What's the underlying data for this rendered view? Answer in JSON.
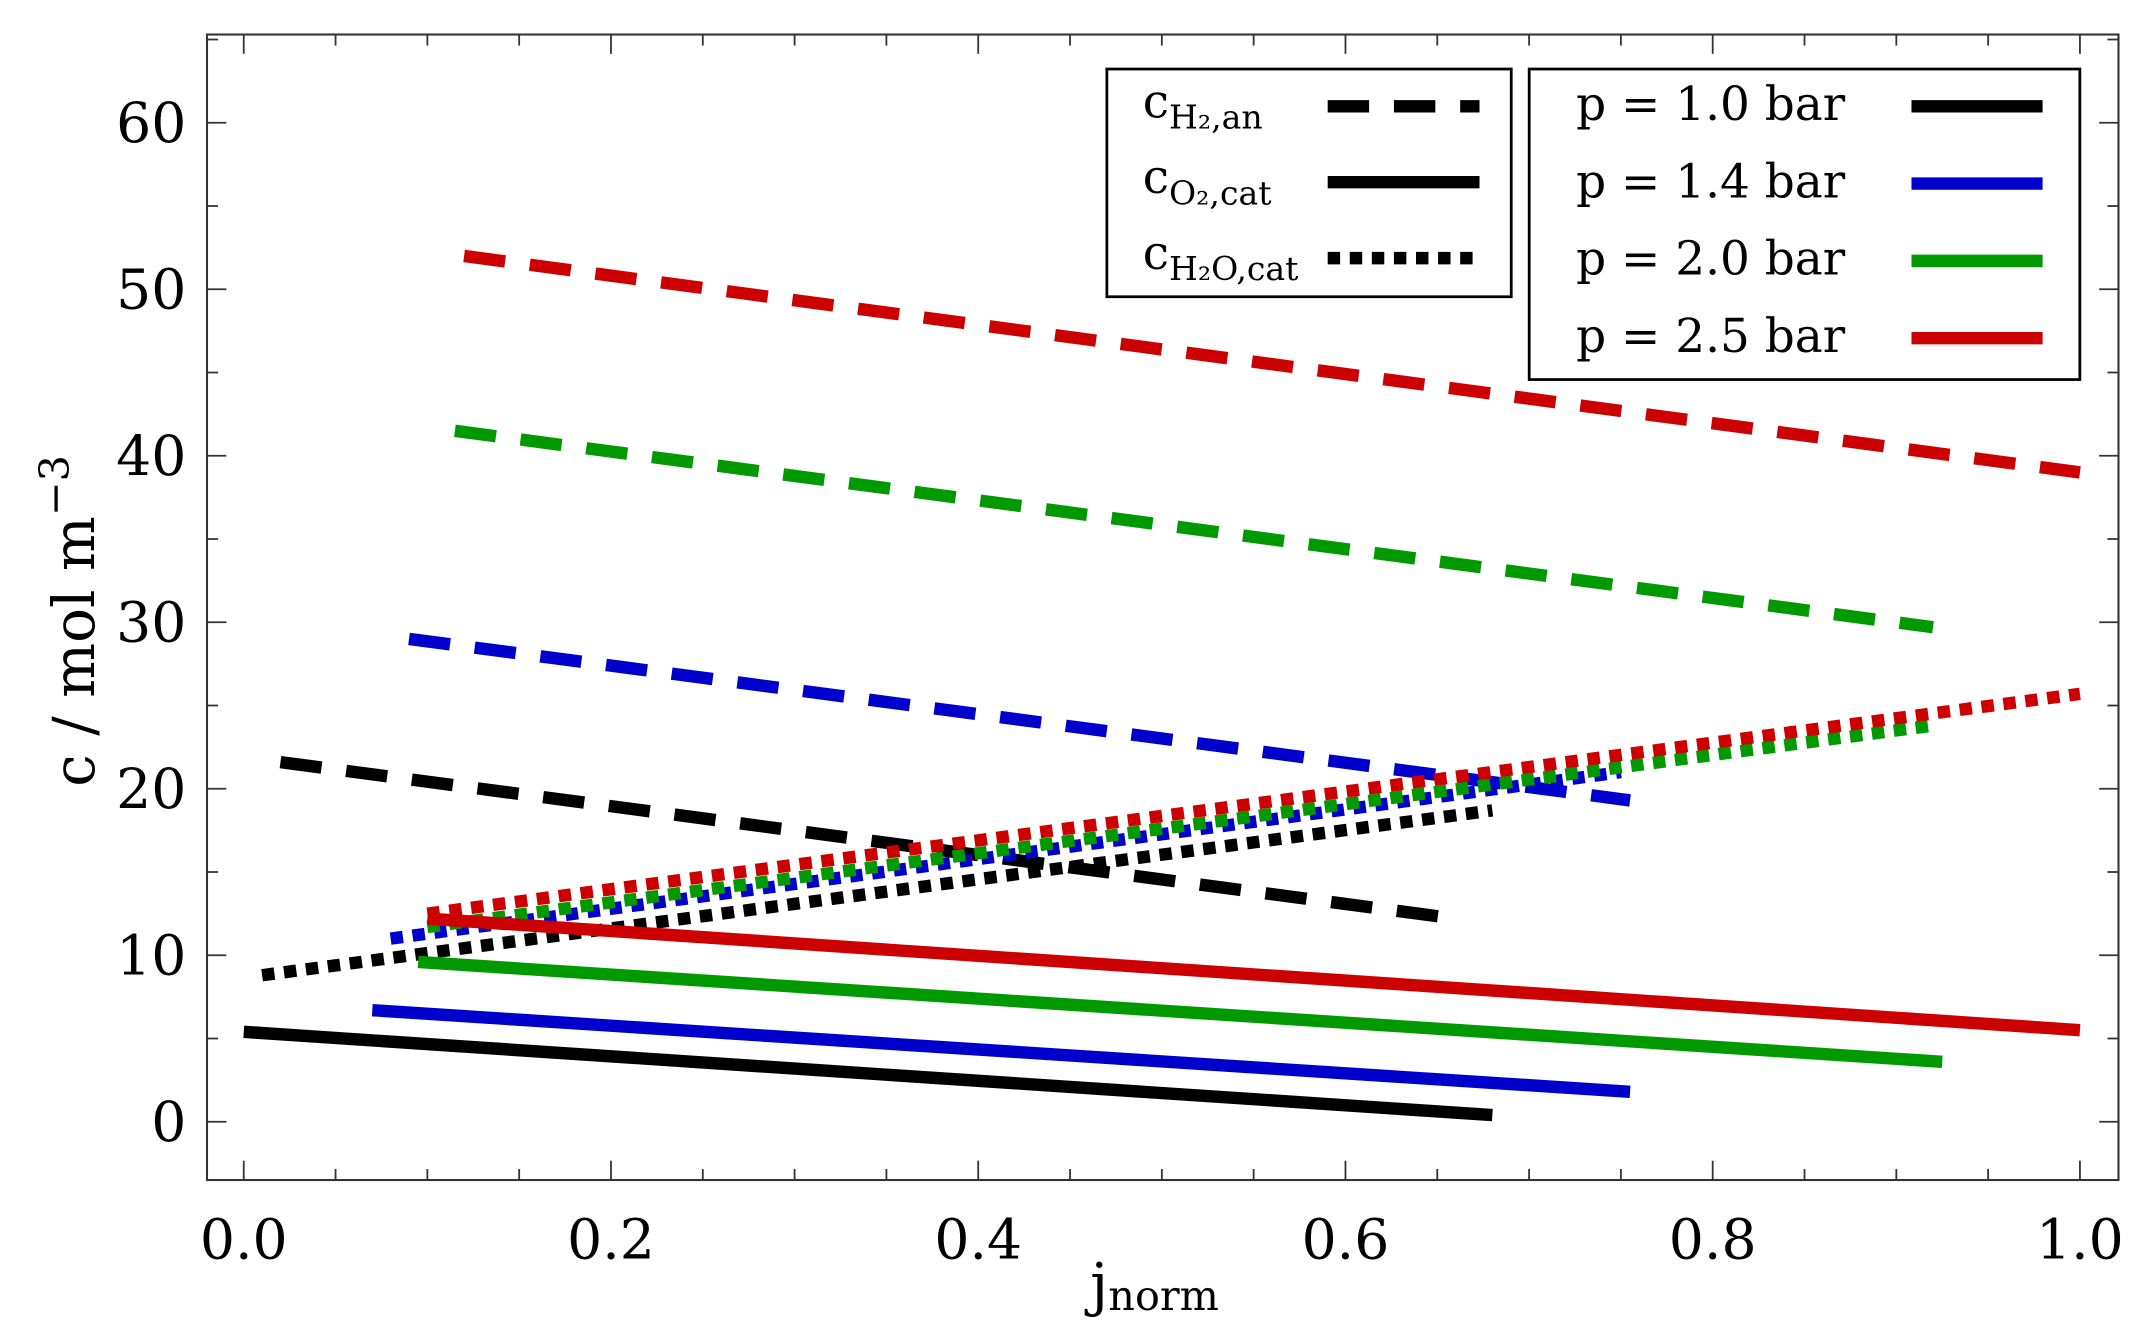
{
  "chart_data": {
    "type": "line",
    "title": "",
    "xlabel": "j",
    "xlabel_subscript": "norm",
    "ylabel": "c / mol m",
    "ylabel_superscript": "−3",
    "xlim": [
      -0.02,
      1.021
    ],
    "ylim": [
      -3.5,
      65.3
    ],
    "xticks": [
      0.0,
      0.2,
      0.4,
      0.6,
      0.8,
      1.0
    ],
    "xtick_labels": [
      "0.0",
      "0.2",
      "0.4",
      "0.6",
      "0.8",
      "1.0"
    ],
    "yticks": [
      0,
      10,
      20,
      30,
      40,
      50,
      60
    ],
    "ytick_labels": [
      "0",
      "10",
      "20",
      "30",
      "40",
      "50",
      "60"
    ],
    "grid": false,
    "line_styles_legend": {
      "placement": "top-center-right",
      "entries": [
        {
          "symbol": "c",
          "subscript": "H₂,an",
          "style": "dashed"
        },
        {
          "symbol": "c",
          "subscript": "O₂,cat",
          "style": "solid"
        },
        {
          "symbol": "c",
          "subscript": "H₂O,cat",
          "style": "dotted"
        }
      ]
    },
    "color_legend": {
      "placement": "top-right",
      "entries": [
        {
          "label": "p = 1.0  bar",
          "color": "#000000"
        },
        {
          "label": "p = 1.4  bar",
          "color": "#0000cc"
        },
        {
          "label": "p = 2.0  bar",
          "color": "#009900"
        },
        {
          "label": "p = 2.5  bar",
          "color": "#cc0000"
        }
      ]
    },
    "series": [
      {
        "pressure": "1.0 bar",
        "quantity": "H2,an",
        "style": "dashed",
        "color": "#000000",
        "x": [
          0.02,
          0.66
        ],
        "y": [
          21.6,
          12.2
        ]
      },
      {
        "pressure": "1.0 bar",
        "quantity": "O2,cat",
        "style": "solid",
        "color": "#000000",
        "x": [
          0.0,
          0.68
        ],
        "y": [
          5.4,
          0.4
        ]
      },
      {
        "pressure": "1.0 bar",
        "quantity": "H2O,cat",
        "style": "dotted",
        "color": "#000000",
        "x": [
          0.01,
          0.68
        ],
        "y": [
          8.8,
          18.7
        ]
      },
      {
        "pressure": "1.4 bar",
        "quantity": "H2,an",
        "style": "dashed",
        "color": "#0000cc",
        "x": [
          0.09,
          0.755
        ],
        "y": [
          29.0,
          19.3
        ]
      },
      {
        "pressure": "1.4 bar",
        "quantity": "O2,cat",
        "style": "solid",
        "color": "#0000cc",
        "x": [
          0.07,
          0.755
        ],
        "y": [
          6.7,
          1.8
        ]
      },
      {
        "pressure": "1.4 bar",
        "quantity": "H2O,cat",
        "style": "dotted",
        "color": "#0000cc",
        "x": [
          0.08,
          0.75
        ],
        "y": [
          11.0,
          21.0
        ]
      },
      {
        "pressure": "2.0 bar",
        "quantity": "H2,an",
        "style": "dashed",
        "color": "#009900",
        "x": [
          0.115,
          0.92
        ],
        "y": [
          41.5,
          29.7
        ]
      },
      {
        "pressure": "2.0 bar",
        "quantity": "O2,cat",
        "style": "solid",
        "color": "#009900",
        "x": [
          0.095,
          0.925
        ],
        "y": [
          9.6,
          3.6
        ]
      },
      {
        "pressure": "2.0 bar",
        "quantity": "H2O,cat",
        "style": "dotted",
        "color": "#009900",
        "x": [
          0.1,
          0.92
        ],
        "y": [
          11.7,
          23.8
        ]
      },
      {
        "pressure": "2.5 bar",
        "quantity": "H2,an",
        "style": "dashed",
        "color": "#cc0000",
        "x": [
          0.12,
          1.0
        ],
        "y": [
          52.0,
          39.0
        ]
      },
      {
        "pressure": "2.5 bar",
        "quantity": "O2,cat",
        "style": "solid",
        "color": "#cc0000",
        "x": [
          0.1,
          1.0
        ],
        "y": [
          12.2,
          5.5
        ]
      },
      {
        "pressure": "2.5 bar",
        "quantity": "H2O,cat",
        "style": "dotted",
        "color": "#cc0000",
        "x": [
          0.1,
          1.0
        ],
        "y": [
          12.5,
          25.7
        ]
      }
    ]
  }
}
